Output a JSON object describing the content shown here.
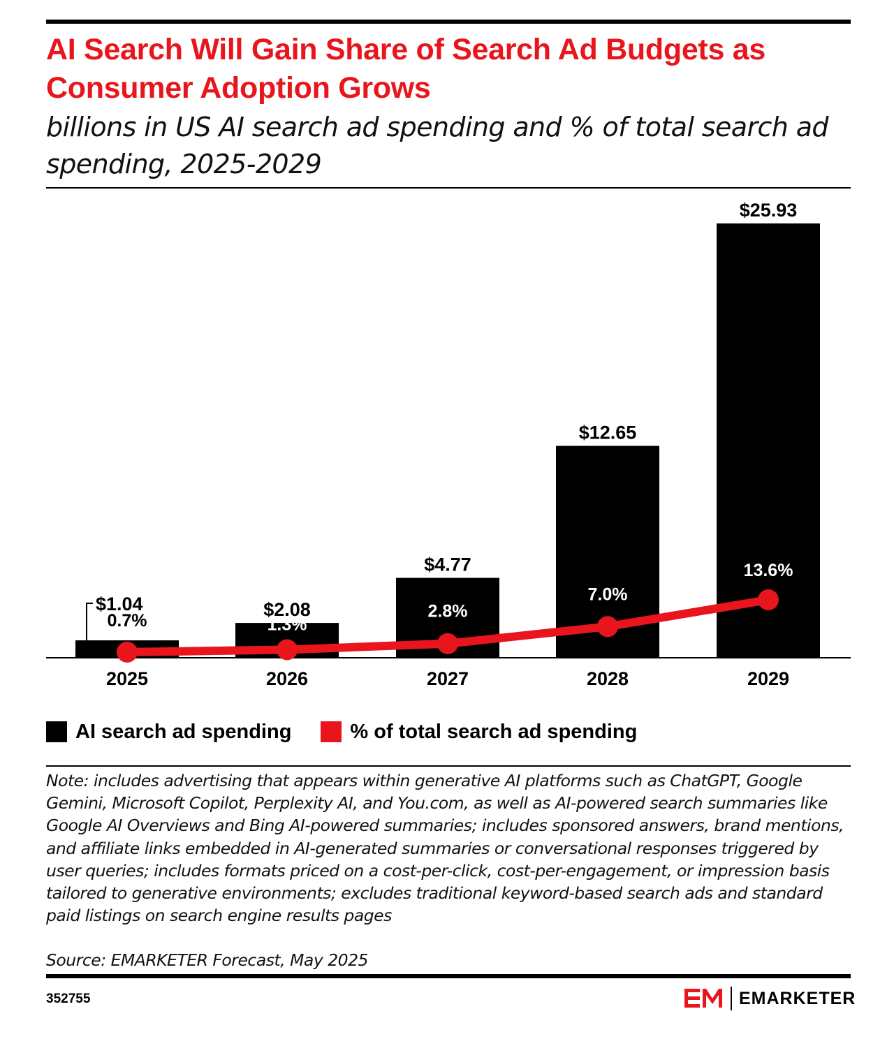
{
  "title": "AI Search Will Gain Share of Search Ad Budgets as Consumer Adoption Grows",
  "subtitle": "billions in US AI search ad spending and % of total search ad spending, 2025-2029",
  "colors": {
    "bar": "#000000",
    "line": "#e8161c",
    "title": "#e8161c"
  },
  "legend": {
    "bar_label": "AI search ad spending",
    "line_label": "% of total search ad spending"
  },
  "note": "Note: includes advertising that appears within generative AI platforms such as ChatGPT, Google Gemini, Microsoft Copilot, Perplexity AI, and You.com, as well as AI-powered search summaries like Google AI Overviews and Bing AI-powered summaries; includes sponsored answers, brand mentions, and affiliate links embedded in AI-generated summaries or conversational responses triggered by user queries; includes formats priced on a cost-per-click, cost-per-engagement, or impression basis tailored to generative environments; excludes traditional keyword-based search ads and standard paid listings on search engine results pages",
  "source": "Source: EMARKETER Forecast, May 2025",
  "chart_id": "352755",
  "brand": {
    "name": "EMARKETER",
    "logo_icon": "em-logo-icon"
  },
  "chart_data": {
    "type": "bar",
    "categories": [
      "2025",
      "2026",
      "2027",
      "2028",
      "2029"
    ],
    "series": [
      {
        "name": "AI search ad spending",
        "type": "bar",
        "values": [
          1.04,
          2.08,
          4.77,
          12.65,
          25.93
        ],
        "labels": [
          "$1.04",
          "$2.08",
          "$4.77",
          "$12.65",
          "$25.93"
        ]
      },
      {
        "name": "% of total search ad spending",
        "type": "line",
        "values": [
          0.7,
          1.3,
          2.8,
          7.0,
          13.6
        ],
        "labels": [
          "0.7%",
          "1.3%",
          "2.8%",
          "7.0%",
          "13.6%"
        ]
      }
    ],
    "grid": false,
    "legend_position": "bottom-left"
  }
}
